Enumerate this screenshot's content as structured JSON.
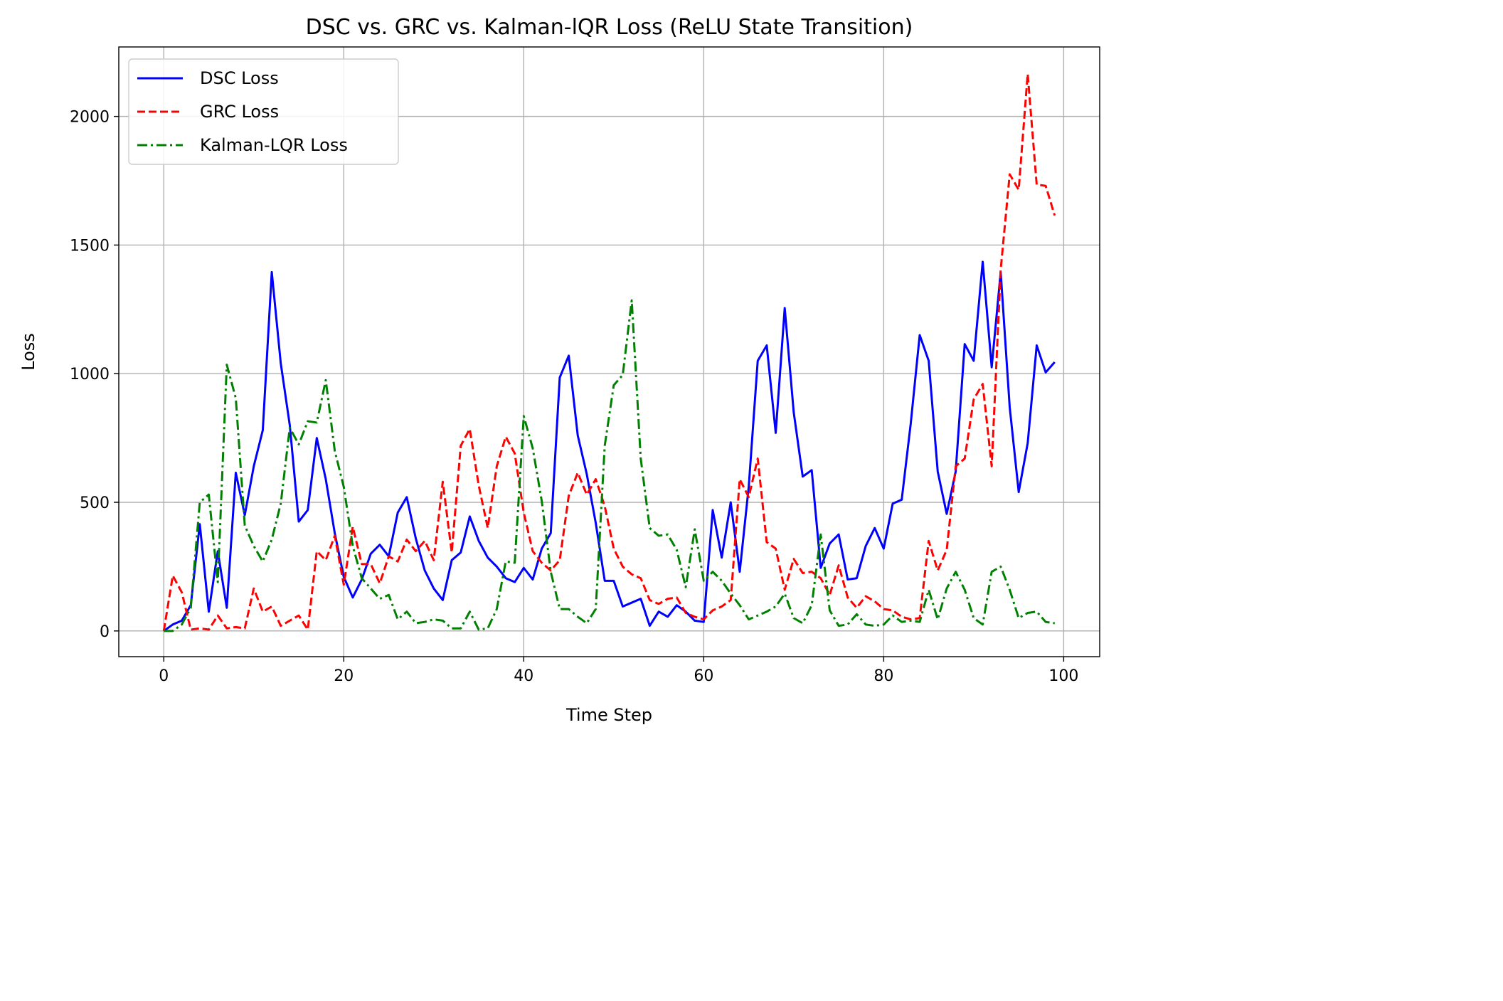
{
  "chart_data": {
    "type": "line",
    "title": "DSC vs. GRC vs. Kalman-lQR Loss (ReLU State Transition)",
    "xlabel": "Time Step",
    "ylabel": "Loss",
    "xlim": [
      -5,
      104
    ],
    "ylim": [
      -100,
      2270
    ],
    "xticks": [
      0,
      20,
      40,
      60,
      80,
      100
    ],
    "yticks": [
      0,
      500,
      1000,
      1500,
      2000
    ],
    "xtick_labels": [
      "0",
      "20",
      "40",
      "60",
      "80",
      "100"
    ],
    "ytick_labels": [
      "0",
      "500",
      "1000",
      "1500",
      "2000"
    ],
    "grid": true,
    "legend_position": "upper-left",
    "x": [
      0,
      1,
      2,
      3,
      4,
      5,
      6,
      7,
      8,
      9,
      10,
      11,
      12,
      13,
      14,
      15,
      16,
      17,
      18,
      19,
      20,
      21,
      22,
      23,
      24,
      25,
      26,
      27,
      28,
      29,
      30,
      31,
      32,
      33,
      34,
      35,
      36,
      37,
      38,
      39,
      40,
      41,
      42,
      43,
      44,
      45,
      46,
      47,
      48,
      49,
      50,
      51,
      52,
      53,
      54,
      55,
      56,
      57,
      58,
      59,
      60,
      61,
      62,
      63,
      64,
      65,
      66,
      67,
      68,
      69,
      70,
      71,
      72,
      73,
      74,
      75,
      76,
      77,
      78,
      79,
      80,
      81,
      82,
      83,
      84,
      85,
      86,
      87,
      88,
      89,
      90,
      91,
      92,
      93,
      94,
      95,
      96,
      97,
      98,
      99
    ],
    "series": [
      {
        "name": "DSC Loss",
        "color": "#0000ff",
        "dash": "solid",
        "values": [
          0,
          25,
          40,
          100,
          415,
          75,
          310,
          90,
          615,
          450,
          640,
          780,
          1395,
          1040,
          800,
          425,
          470,
          750,
          590,
          380,
          210,
          130,
          200,
          300,
          335,
          290,
          460,
          520,
          360,
          235,
          165,
          120,
          275,
          305,
          445,
          350,
          285,
          250,
          205,
          190,
          245,
          200,
          320,
          380,
          985,
          1070,
          760,
          610,
          420,
          195,
          195,
          95,
          110,
          125,
          20,
          75,
          55,
          100,
          75,
          40,
          35,
          470,
          285,
          500,
          230,
          560,
          1050,
          1110,
          770,
          1255,
          850,
          600,
          625,
          245,
          340,
          375,
          200,
          205,
          330,
          400,
          320,
          495,
          510,
          805,
          1150,
          1050,
          620,
          455,
          620,
          1115,
          1050,
          1435,
          1025,
          1395,
          870,
          540,
          730,
          1110,
          1005,
          1045
        ]
      },
      {
        "name": "GRC Loss",
        "color": "#ff0000",
        "dash": "dashed",
        "values": [
          0,
          215,
          150,
          5,
          10,
          5,
          60,
          10,
          15,
          10,
          165,
          75,
          95,
          20,
          40,
          60,
          5,
          310,
          275,
          370,
          180,
          405,
          260,
          260,
          185,
          290,
          270,
          355,
          310,
          350,
          275,
          580,
          305,
          720,
          785,
          565,
          400,
          640,
          755,
          690,
          460,
          310,
          265,
          235,
          275,
          525,
          615,
          530,
          590,
          485,
          320,
          250,
          220,
          205,
          120,
          105,
          125,
          130,
          70,
          55,
          45,
          80,
          95,
          120,
          590,
          520,
          670,
          345,
          320,
          160,
          280,
          225,
          230,
          205,
          140,
          255,
          130,
          90,
          135,
          115,
          85,
          80,
          55,
          45,
          50,
          350,
          235,
          315,
          640,
          670,
          900,
          960,
          640,
          1405,
          1775,
          1715,
          2165,
          1735,
          1730,
          1615
        ]
      },
      {
        "name": "Kalman-LQR Loss",
        "color": "#008000",
        "dash": "dashdot",
        "values": [
          0,
          0,
          25,
          90,
          500,
          530,
          190,
          1035,
          905,
          410,
          330,
          270,
          355,
          495,
          790,
          725,
          815,
          810,
          975,
          700,
          560,
          330,
          205,
          165,
          125,
          140,
          45,
          75,
          30,
          35,
          45,
          40,
          10,
          10,
          75,
          5,
          10,
          85,
          270,
          265,
          835,
          710,
          505,
          230,
          85,
          85,
          55,
          30,
          85,
          720,
          955,
          995,
          1285,
          670,
          400,
          370,
          375,
          315,
          170,
          395,
          195,
          230,
          195,
          145,
          100,
          45,
          60,
          75,
          95,
          145,
          50,
          30,
          100,
          375,
          80,
          20,
          25,
          65,
          25,
          20,
          25,
          60,
          35,
          40,
          35,
          160,
          45,
          165,
          230,
          160,
          50,
          25,
          230,
          250,
          160,
          50,
          70,
          75,
          35,
          30
        ]
      }
    ]
  }
}
